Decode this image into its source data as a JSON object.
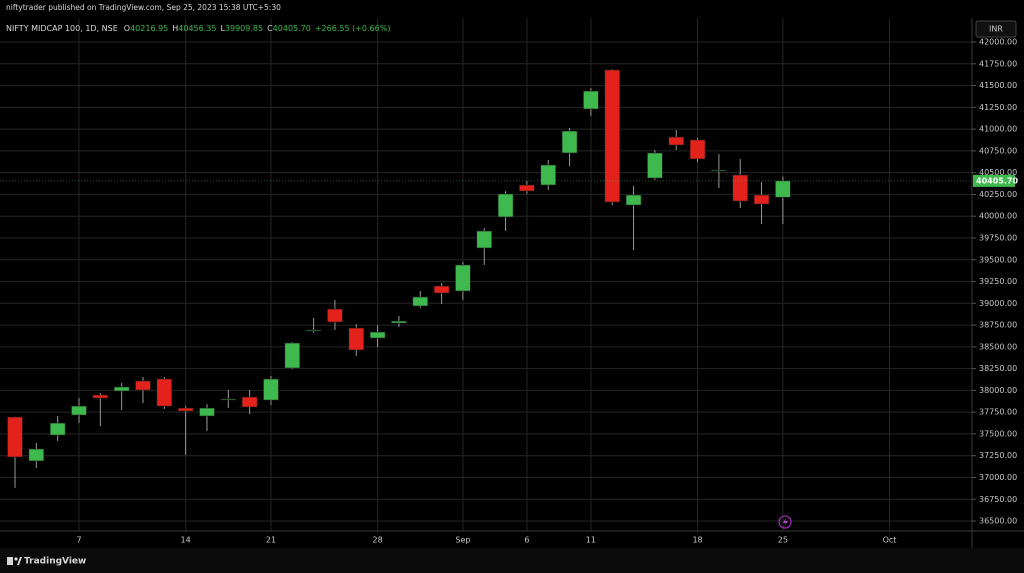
{
  "publisher": "niftytrader published on TradingView.com, Sep 25, 2023 15:38 UTC+5:30",
  "brand": "TradingView",
  "chart_data": {
    "type": "candlestick",
    "title": "NIFTY MIDCAP 100, 1D, NSE",
    "ohlc": [
      {
        "key": "O",
        "label": "40216.95"
      },
      {
        "key": "H",
        "label": "40456.35"
      },
      {
        "key": "L",
        "label": "39909.85"
      },
      {
        "key": "C",
        "label": "40405.70"
      }
    ],
    "change_label": "+266.55 (+0.66%)",
    "currency": "INR",
    "last_price_label": "40405.70",
    "up_color": "#3fb94d",
    "down_color": "#e3231b",
    "categories": [
      null,
      null,
      null,
      "7",
      null,
      null,
      null,
      null,
      "14",
      null,
      null,
      null,
      "21",
      null,
      null,
      null,
      null,
      "28",
      null,
      null,
      null,
      "Sep",
      null,
      null,
      "6",
      null,
      null,
      "11",
      null,
      null,
      null,
      null,
      "18",
      null,
      null,
      null,
      "25",
      null,
      null,
      null,
      null,
      "Oct"
    ],
    "open": [
      37694,
      37190,
      37487,
      37717,
      37947,
      37993,
      38108,
      38131,
      37797,
      37706,
      37890,
      37924,
      37889,
      38257,
      38682,
      38934,
      38716,
      38601,
      38773,
      38969,
      39198,
      39141,
      39635,
      39991,
      40358,
      40358,
      40726,
      41231,
      41679,
      40128,
      40438,
      40909,
      40875,
      40519,
      40473,
      40243,
      40216.95,
      null,
      null,
      null,
      null,
      null
    ],
    "high": [
      37700,
      37396,
      37706,
      37912,
      37970,
      38085,
      38154,
      38154,
      37820,
      37843,
      38004,
      38004,
      38165,
      38555,
      38831,
      39038,
      38762,
      38750,
      38854,
      39141,
      39233,
      39474,
      39864,
      40289,
      40404,
      40645,
      41013,
      41472,
      41690,
      40347,
      40760,
      40990,
      40898,
      40714,
      40657,
      40392,
      40456.35,
      null,
      null,
      null,
      null,
      null
    ],
    "low": [
      36880,
      37109,
      37419,
      37625,
      37590,
      37775,
      37855,
      37786,
      37258,
      37533,
      37797,
      37729,
      37832,
      38245,
      38659,
      38693,
      38395,
      38498,
      38728,
      38946,
      38992,
      39038,
      39440,
      39830,
      40255,
      40301,
      40576,
      41150,
      40128,
      39612,
      40416,
      40760,
      40622,
      40324,
      40094,
      39910,
      39909.85,
      null,
      null,
      null,
      null,
      null
    ],
    "close": [
      37235,
      37327,
      37625,
      37820,
      37912,
      38039,
      38004,
      37820,
      37763,
      37797,
      37901,
      37809,
      38131,
      38544,
      38693,
      38785,
      38464,
      38670,
      38796,
      39072,
      39118,
      39440,
      39830,
      40255,
      40289,
      40588,
      40978,
      41437,
      40163,
      40243,
      40726,
      40817,
      40657,
      40530,
      40174,
      40140,
      40405.7,
      null,
      null,
      null,
      null,
      null
    ],
    "ylim": [
      36397,
      42138
    ],
    "yticks": [
      {
        "value": 36500,
        "label": "36500.00"
      },
      {
        "value": 36750,
        "label": "36750.00"
      },
      {
        "value": 37000,
        "label": "37000.00"
      },
      {
        "value": 37250,
        "label": "37250.00"
      },
      {
        "value": 37500,
        "label": "37500.00"
      },
      {
        "value": 37750,
        "label": "37750.00"
      },
      {
        "value": 38000,
        "label": "38000.00"
      },
      {
        "value": 38250,
        "label": "38250.00"
      },
      {
        "value": 38500,
        "label": "38500.00"
      },
      {
        "value": 38750,
        "label": "38750.00"
      },
      {
        "value": 39000,
        "label": "39000.00"
      },
      {
        "value": 39250,
        "label": "39250.00"
      },
      {
        "value": 39500,
        "label": "39500.00"
      },
      {
        "value": 39750,
        "label": "39750.00"
      },
      {
        "value": 40000,
        "label": "40000.00"
      },
      {
        "value": 40250,
        "label": "40250.00"
      },
      {
        "value": 40500,
        "label": "40500.00"
      },
      {
        "value": 40750,
        "label": "40750.00"
      },
      {
        "value": 41000,
        "label": "41000.00"
      },
      {
        "value": 41250,
        "label": "41250.00"
      },
      {
        "value": 41500,
        "label": "41500.00"
      },
      {
        "value": 41750,
        "label": "41750.00"
      },
      {
        "value": 42000,
        "label": "42000.00"
      }
    ],
    "grid": true
  }
}
